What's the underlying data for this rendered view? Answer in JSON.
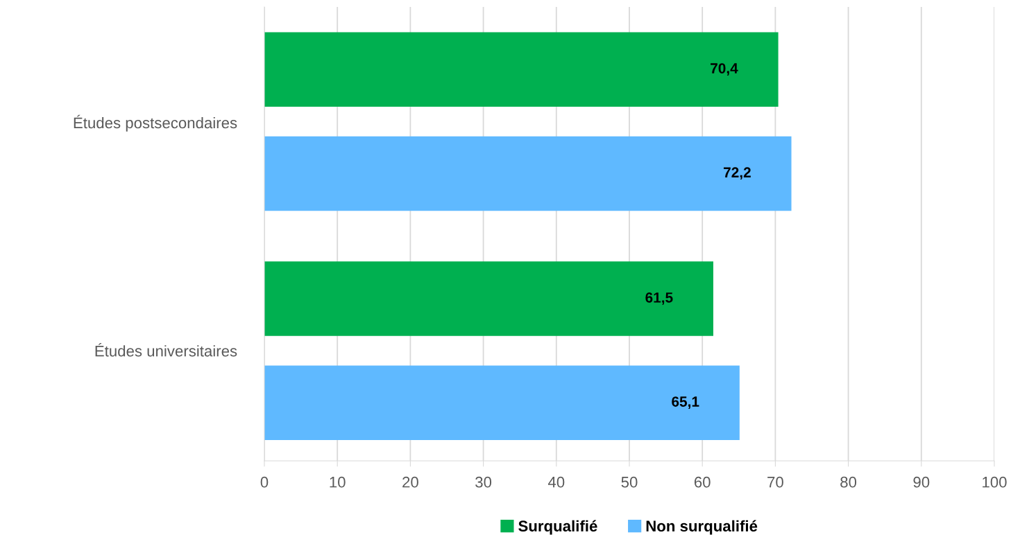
{
  "chart_data": {
    "type": "bar",
    "orientation": "horizontal",
    "categories": [
      "Études postsecondaires",
      "Études universitaires"
    ],
    "series": [
      {
        "name": "Surqualifié",
        "color": "#00b050",
        "values": [
          70.4,
          61.5
        ],
        "value_labels": [
          "70,4",
          "61,5"
        ]
      },
      {
        "name": "Non surqualifié",
        "color": "#5fb9ff",
        "values": [
          72.2,
          65.1
        ],
        "value_labels": [
          "72,2",
          "65,1"
        ]
      }
    ],
    "xlim": [
      0,
      100
    ],
    "xticks": [
      0,
      10,
      20,
      30,
      40,
      50,
      60,
      70,
      80,
      90,
      100
    ],
    "grid": "x",
    "legend": "bottom"
  }
}
